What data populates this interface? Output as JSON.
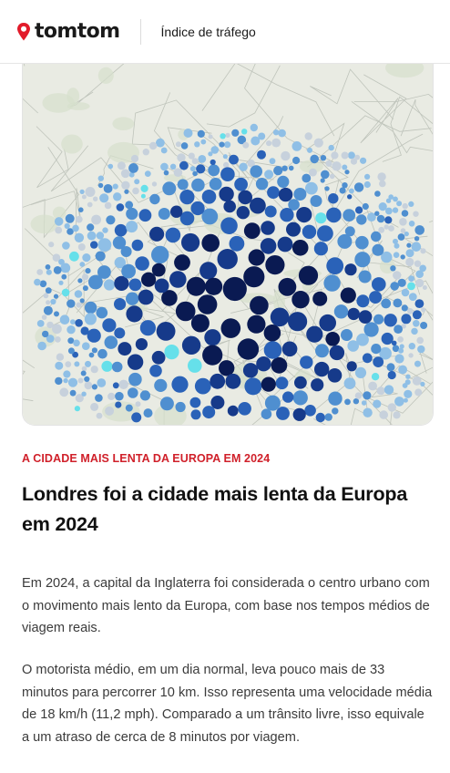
{
  "header": {
    "logo_text": "tomtom",
    "nav_link": "Índice de tráfego"
  },
  "map": {
    "icon": "london-traffic-heatmap",
    "colors": {
      "darkest": "#0a1a52",
      "dark": "#163a8a",
      "medium": "#2a62b8",
      "light": "#4f8fd0",
      "pale": "#8fbfe6",
      "grey": "#c7d1dc",
      "cyan": "#66e0ea",
      "background": "#e9ebe3"
    }
  },
  "article": {
    "kicker": "A CIDADE MAIS LENTA DA EUROPA EM 2024",
    "headline": "Londres foi a cidade mais lenta da Europa em 2024",
    "paragraphs": [
      "Em 2024, a capital da Inglaterra foi considerada o centro urbano com o movimento mais lento da Europa, com base nos tempos médios de viagem reais.",
      "O motorista médio, em um dia normal, leva pouco mais de 33 minutos para percorrer 10 km. Isso representa uma velocidade média de 18 km/h (11,2 mph). Comparado a um trânsito livre, isso equivale a um atraso de cerca de 8 minutos por viagem."
    ]
  },
  "accent_color": "#d0202a"
}
